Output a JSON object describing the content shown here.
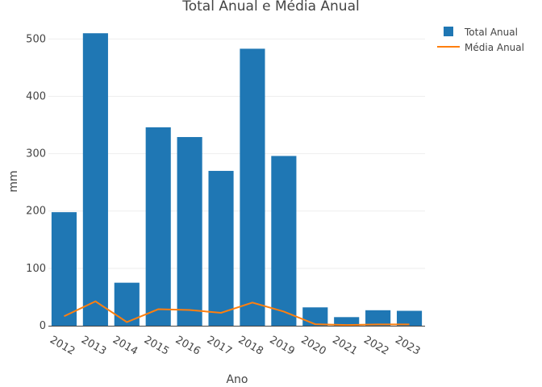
{
  "chart_data": {
    "type": "bar",
    "title": "Total Anual e Média Anual",
    "xlabel": "Ano",
    "ylabel": "mm",
    "categories": [
      "2012",
      "2013",
      "2014",
      "2015",
      "2016",
      "2017",
      "2018",
      "2019",
      "2020",
      "2021",
      "2022",
      "2023"
    ],
    "ylim": [
      0,
      530
    ],
    "yticks": [
      0,
      100,
      200,
      300,
      400,
      500
    ],
    "grid": true,
    "legend": "top-right",
    "series": [
      {
        "name": "Total Anual",
        "type": "bar",
        "color": "#1f77b4",
        "values": [
          198,
          510,
          75,
          346,
          329,
          270,
          483,
          296,
          32,
          15,
          27,
          26
        ]
      },
      {
        "name": "Média Anual",
        "type": "line",
        "color": "#ff7f0e",
        "values": [
          16.5,
          42.5,
          6.3,
          28.8,
          27.4,
          22.5,
          40.3,
          24.7,
          2.7,
          1.3,
          2.3,
          2.2
        ]
      }
    ]
  }
}
